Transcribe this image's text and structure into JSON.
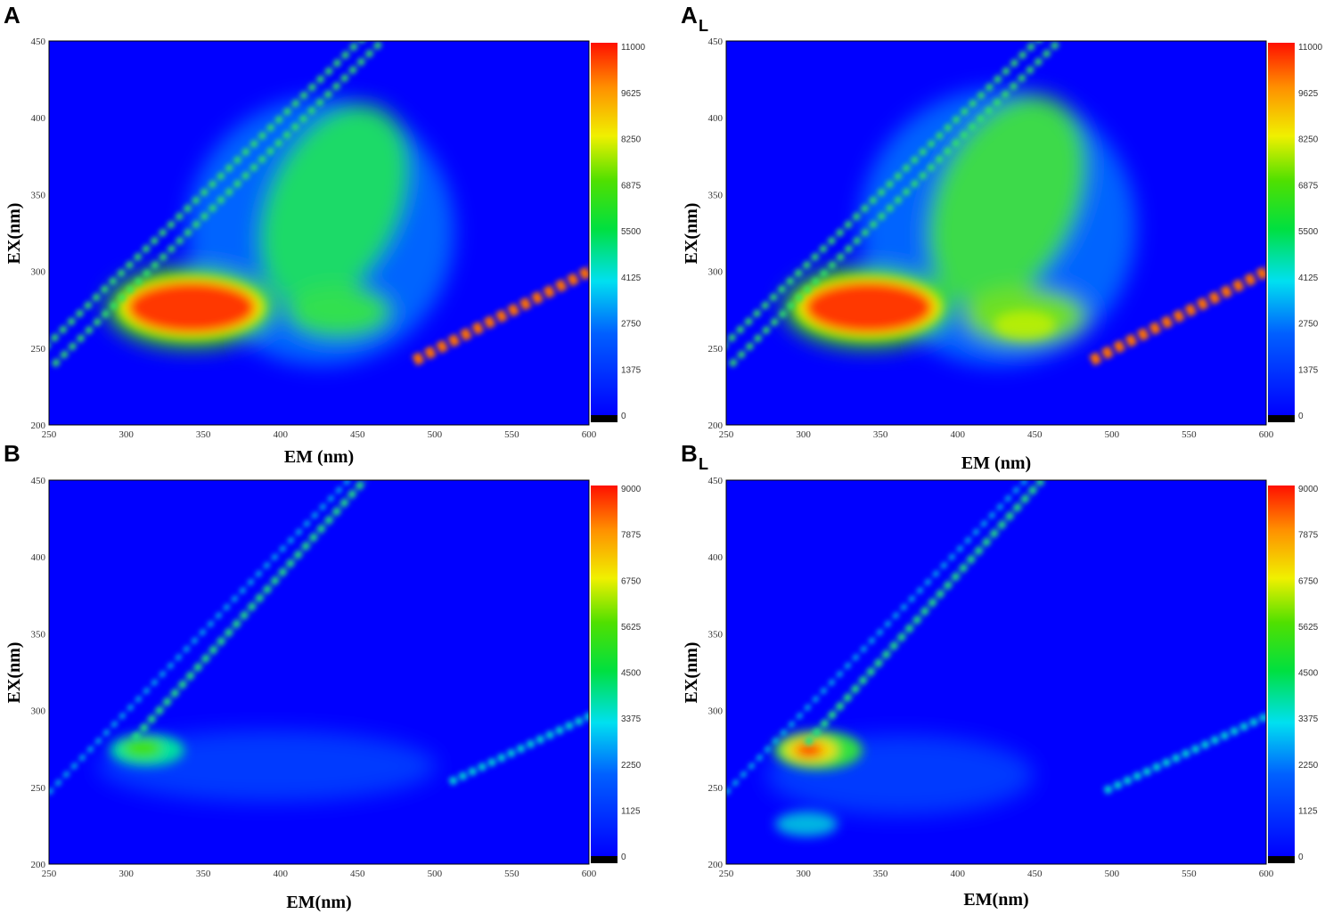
{
  "chart_data": [
    {
      "type": "heatmap",
      "panel_label": "A",
      "panel_sub": "",
      "xlabel": "EM (nm)",
      "ylabel": "EX(nm)",
      "xlim": [
        250,
        600
      ],
      "ylim": [
        200,
        450
      ],
      "x_ticks": [
        "250",
        "300",
        "350",
        "400",
        "450",
        "500",
        "550",
        "600"
      ],
      "y_ticks": [
        "200",
        "250",
        "300",
        "350",
        "400",
        "450"
      ],
      "colorbar_ticks": [
        "0",
        "1375",
        "2750",
        "4125",
        "5500",
        "6875",
        "8250",
        "9625",
        "11000"
      ],
      "colorbar_range": [
        0,
        11000
      ],
      "peaks": [
        {
          "em": 335,
          "ex": 275,
          "value": 10500
        },
        {
          "em": 410,
          "ex": 320,
          "value": 6600
        },
        {
          "em": 440,
          "ex": 265,
          "value": 5800
        }
      ]
    },
    {
      "type": "heatmap",
      "panel_label": "A",
      "panel_sub": "L",
      "xlabel": "EM (nm)",
      "ylabel": "EX(nm)",
      "xlim": [
        250,
        600
      ],
      "ylim": [
        200,
        450
      ],
      "x_ticks": [
        "250",
        "300",
        "350",
        "400",
        "450",
        "500",
        "550",
        "600"
      ],
      "y_ticks": [
        "200",
        "250",
        "300",
        "350",
        "400",
        "450"
      ],
      "colorbar_ticks": [
        "0",
        "1375",
        "2750",
        "4125",
        "5500",
        "6875",
        "8250",
        "9625",
        "11000"
      ],
      "colorbar_range": [
        0,
        11000
      ],
      "peaks": [
        {
          "em": 335,
          "ex": 275,
          "value": 10500
        },
        {
          "em": 420,
          "ex": 330,
          "value": 7200
        },
        {
          "em": 445,
          "ex": 262,
          "value": 7400
        }
      ]
    },
    {
      "type": "heatmap",
      "panel_label": "B",
      "panel_sub": "",
      "xlabel": "EM(nm)",
      "ylabel": "EX(nm)",
      "xlim": [
        250,
        600
      ],
      "ylim": [
        200,
        450
      ],
      "x_ticks": [
        "250",
        "300",
        "350",
        "400",
        "450",
        "500",
        "550",
        "600"
      ],
      "y_ticks": [
        "200",
        "250",
        "300",
        "350",
        "400",
        "450"
      ],
      "colorbar_ticks": [
        "0",
        "1125",
        "2250",
        "3375",
        "4500",
        "5625",
        "6750",
        "7875",
        "9000"
      ],
      "colorbar_range": [
        0,
        9000
      ],
      "peaks": [
        {
          "em": 310,
          "ex": 275,
          "value": 5200
        }
      ]
    },
    {
      "type": "heatmap",
      "panel_label": "B",
      "panel_sub": "L",
      "xlabel": "EM(nm)",
      "ylabel": "EX(nm)",
      "xlim": [
        250,
        600
      ],
      "ylim": [
        200,
        450
      ],
      "x_ticks": [
        "250",
        "300",
        "350",
        "400",
        "450",
        "500",
        "550",
        "600"
      ],
      "y_ticks": [
        "200",
        "250",
        "300",
        "350",
        "400",
        "450"
      ],
      "colorbar_ticks": [
        "0",
        "1125",
        "2250",
        "3375",
        "4500",
        "5625",
        "6750",
        "7875",
        "9000"
      ],
      "colorbar_range": [
        0,
        9000
      ],
      "peaks": [
        {
          "em": 308,
          "ex": 275,
          "value": 8200
        },
        {
          "em": 305,
          "ex": 230,
          "value": 3200
        }
      ]
    }
  ]
}
